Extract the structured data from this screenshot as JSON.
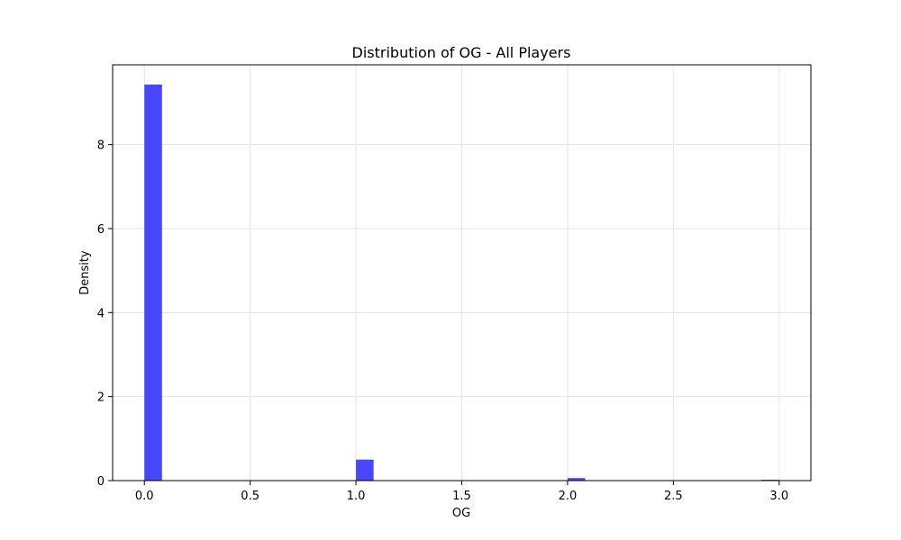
{
  "chart_data": {
    "type": "bar",
    "title": "Distribution of OG - All Players",
    "xlabel": "OG",
    "ylabel": "Density",
    "xlim": [
      -0.15,
      3.15
    ],
    "ylim": [
      0,
      9.9
    ],
    "x_ticks": [
      "0.0",
      "0.5",
      "1.0",
      "1.5",
      "2.0",
      "2.5",
      "3.0"
    ],
    "x_tick_values": [
      0.0,
      0.5,
      1.0,
      1.5,
      2.0,
      2.5,
      3.0
    ],
    "y_ticks": [
      "0",
      "2",
      "4",
      "6",
      "8"
    ],
    "y_tick_values": [
      0,
      2,
      4,
      6,
      8
    ],
    "grid": true,
    "bar_color": "#4747ff",
    "bins": [
      {
        "x0": 0.0,
        "x1": 0.0833,
        "value": 9.43
      },
      {
        "x0": 1.0,
        "x1": 1.0833,
        "value": 0.5
      },
      {
        "x0": 2.0,
        "x1": 2.0833,
        "value": 0.06
      },
      {
        "x0": 2.9167,
        "x1": 3.0,
        "value": 0.02
      }
    ]
  }
}
